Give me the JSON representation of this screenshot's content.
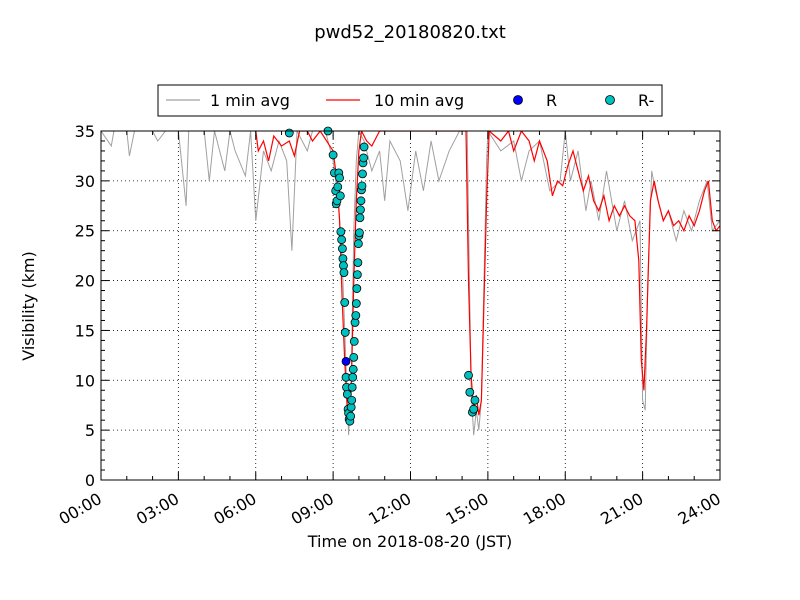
{
  "chart_data": {
    "type": "line",
    "title": "pwd52_20180820.txt",
    "xlabel": "Time on 2018-08-20 (JST)",
    "ylabel": "Visibility (km)",
    "xlim_hours": [
      0,
      24
    ],
    "ylim": [
      0,
      35
    ],
    "xticks": [
      "00:00",
      "03:00",
      "06:00",
      "09:00",
      "12:00",
      "15:00",
      "18:00",
      "21:00",
      "24:00"
    ],
    "yticks": [
      0,
      5,
      10,
      15,
      20,
      25,
      30,
      35
    ],
    "grid": true,
    "legend": {
      "placement": "top-center, outside",
      "entries": [
        {
          "label": "1 min avg",
          "color": "#a0a0a0",
          "kind": "line"
        },
        {
          "label": "10 min avg",
          "color": "#ff0000",
          "kind": "line"
        },
        {
          "label": "R",
          "color": "#0000ff",
          "kind": "marker"
        },
        {
          "label": "R-",
          "color": "#00bfbf",
          "kind": "marker"
        }
      ]
    },
    "series": [
      {
        "name": "1 min avg",
        "color": "#a0a0a0",
        "points": [
          [
            0.0,
            35
          ],
          [
            0.4,
            33.5
          ],
          [
            0.5,
            35
          ],
          [
            1.0,
            35
          ],
          [
            1.1,
            32.5
          ],
          [
            1.3,
            35
          ],
          [
            2.0,
            35
          ],
          [
            2.2,
            34.0
          ],
          [
            2.5,
            35
          ],
          [
            3.0,
            35
          ],
          [
            3.3,
            27.5
          ],
          [
            3.4,
            35
          ],
          [
            4.0,
            35
          ],
          [
            4.2,
            30.0
          ],
          [
            4.4,
            35
          ],
          [
            4.8,
            31.0
          ],
          [
            5.0,
            35
          ],
          [
            5.2,
            33.0
          ],
          [
            5.6,
            30.5
          ],
          [
            5.8,
            35
          ],
          [
            6.0,
            26.0
          ],
          [
            6.3,
            33.0
          ],
          [
            6.6,
            31.0
          ],
          [
            6.9,
            34.0
          ],
          [
            7.2,
            32.0
          ],
          [
            7.4,
            23.0
          ],
          [
            7.6,
            35
          ],
          [
            8.0,
            33.0
          ],
          [
            8.2,
            35
          ],
          [
            8.7,
            35
          ],
          [
            9.0,
            32.0
          ],
          [
            9.2,
            28.0
          ],
          [
            9.35,
            22.0
          ],
          [
            9.45,
            15.0
          ],
          [
            9.55,
            8.0
          ],
          [
            9.6,
            4.5
          ],
          [
            9.7,
            10.0
          ],
          [
            9.8,
            25.0
          ],
          [
            9.9,
            32.0
          ],
          [
            10.0,
            35
          ],
          [
            10.2,
            34.0
          ],
          [
            10.5,
            31.0
          ],
          [
            10.8,
            33.0
          ],
          [
            11.0,
            28.0
          ],
          [
            11.2,
            34.0
          ],
          [
            11.6,
            32.0
          ],
          [
            11.9,
            27.0
          ],
          [
            12.2,
            33.0
          ],
          [
            12.5,
            29.0
          ],
          [
            12.8,
            34.0
          ],
          [
            13.1,
            30.0
          ],
          [
            13.5,
            33.0
          ],
          [
            13.9,
            35
          ],
          [
            14.2,
            35
          ],
          [
            14.35,
            9.0
          ],
          [
            14.45,
            4.5
          ],
          [
            14.55,
            7.0
          ],
          [
            14.65,
            5.0
          ],
          [
            14.75,
            8.0
          ],
          [
            14.85,
            20.0
          ],
          [
            14.95,
            32.0
          ],
          [
            15.0,
            35
          ],
          [
            15.5,
            33.0
          ],
          [
            16.0,
            34.0
          ],
          [
            16.3,
            30.0
          ],
          [
            16.6,
            33.0
          ],
          [
            17.0,
            34.0
          ],
          [
            17.4,
            29.0
          ],
          [
            17.8,
            30.0
          ],
          [
            18.0,
            35
          ],
          [
            18.2,
            30.0
          ],
          [
            18.5,
            33.0
          ],
          [
            18.8,
            27.0
          ],
          [
            19.0,
            30.0
          ],
          [
            19.3,
            26.0
          ],
          [
            19.6,
            31.0
          ],
          [
            20.0,
            25.0
          ],
          [
            20.3,
            28.0
          ],
          [
            20.6,
            24.0
          ],
          [
            20.9,
            26.0
          ],
          [
            21.0,
            8.0
          ],
          [
            21.1,
            7.0
          ],
          [
            21.2,
            20.0
          ],
          [
            21.35,
            31.0
          ],
          [
            21.5,
            29.0
          ],
          [
            21.8,
            26.0
          ],
          [
            22.0,
            27.0
          ],
          [
            22.3,
            24.0
          ],
          [
            22.6,
            27.0
          ],
          [
            22.9,
            25.0
          ],
          [
            23.2,
            28.0
          ],
          [
            23.5,
            30.0
          ],
          [
            23.7,
            25.0
          ],
          [
            24.0,
            26.0
          ]
        ]
      },
      {
        "name": "10 min avg",
        "color": "#ff0000",
        "points": [
          [
            6.0,
            35
          ],
          [
            6.1,
            33.0
          ],
          [
            6.3,
            34.0
          ],
          [
            6.5,
            32.0
          ],
          [
            6.7,
            34.5
          ],
          [
            7.0,
            33.5
          ],
          [
            7.3,
            34.0
          ],
          [
            7.5,
            32.5
          ],
          [
            7.7,
            35
          ],
          [
            8.0,
            35
          ],
          [
            8.2,
            34.0
          ],
          [
            8.5,
            35
          ],
          [
            9.0,
            33.0
          ],
          [
            9.15,
            30.0
          ],
          [
            9.25,
            26.0
          ],
          [
            9.35,
            18.0
          ],
          [
            9.45,
            12.0
          ],
          [
            9.55,
            7.0
          ],
          [
            9.62,
            6.0
          ],
          [
            9.7,
            9.0
          ],
          [
            9.8,
            20.0
          ],
          [
            9.9,
            28.0
          ],
          [
            10.0,
            33.0
          ],
          [
            10.1,
            35
          ],
          [
            10.3,
            34.0
          ],
          [
            10.5,
            33.5
          ],
          [
            10.8,
            35
          ],
          [
            13.8,
            35
          ],
          [
            14.15,
            35
          ],
          [
            14.25,
            20.0
          ],
          [
            14.35,
            10.5
          ],
          [
            14.45,
            7.0
          ],
          [
            14.55,
            8.5
          ],
          [
            14.65,
            6.5
          ],
          [
            14.75,
            8.0
          ],
          [
            14.85,
            18.0
          ],
          [
            14.95,
            28.0
          ],
          [
            15.05,
            35
          ],
          [
            15.5,
            34.0
          ],
          [
            15.8,
            35
          ],
          [
            16.0,
            33.0
          ],
          [
            16.3,
            35
          ],
          [
            16.6,
            34.0
          ],
          [
            16.8,
            32.0
          ],
          [
            17.0,
            34.0
          ],
          [
            17.3,
            32.0
          ],
          [
            17.5,
            28.5
          ],
          [
            17.7,
            30.0
          ],
          [
            17.9,
            29.5
          ],
          [
            18.1,
            31.5
          ],
          [
            18.3,
            33.0
          ],
          [
            18.5,
            31.0
          ],
          [
            18.7,
            29.0
          ],
          [
            18.9,
            30.5
          ],
          [
            19.1,
            28.0
          ],
          [
            19.3,
            27.0
          ],
          [
            19.5,
            28.5
          ],
          [
            19.7,
            26.0
          ],
          [
            19.9,
            27.5
          ],
          [
            20.1,
            26.5
          ],
          [
            20.3,
            27.5
          ],
          [
            20.5,
            26.5
          ],
          [
            20.7,
            26.0
          ],
          [
            20.85,
            22.0
          ],
          [
            20.95,
            12.0
          ],
          [
            21.05,
            9.0
          ],
          [
            21.15,
            15.0
          ],
          [
            21.3,
            28.0
          ],
          [
            21.45,
            30.0
          ],
          [
            21.6,
            28.0
          ],
          [
            21.8,
            26.0
          ],
          [
            22.0,
            27.0
          ],
          [
            22.2,
            25.5
          ],
          [
            22.4,
            26.0
          ],
          [
            22.6,
            25.0
          ],
          [
            22.8,
            26.5
          ],
          [
            23.0,
            25.5
          ],
          [
            23.2,
            27.0
          ],
          [
            23.4,
            29.0
          ],
          [
            23.55,
            30.0
          ],
          [
            23.7,
            26.0
          ],
          [
            23.85,
            25.0
          ],
          [
            24.0,
            25.5
          ]
        ]
      },
      {
        "name": "R",
        "color": "#0000ff",
        "points": [
          [
            9.5,
            11.9
          ]
        ]
      },
      {
        "name": "R-",
        "color": "#00bfbf",
        "points": [
          [
            7.3,
            34.8
          ],
          [
            8.8,
            35
          ],
          [
            9.0,
            32.6
          ],
          [
            9.05,
            30.8
          ],
          [
            9.1,
            29.0
          ],
          [
            9.12,
            27.7
          ],
          [
            9.15,
            28.0
          ],
          [
            9.18,
            29.4
          ],
          [
            9.22,
            30.8
          ],
          [
            9.25,
            30.3
          ],
          [
            9.28,
            28.5
          ],
          [
            9.3,
            24.9
          ],
          [
            9.33,
            24.1
          ],
          [
            9.36,
            23.2
          ],
          [
            9.38,
            22.2
          ],
          [
            9.4,
            21.5
          ],
          [
            9.42,
            20.8
          ],
          [
            9.45,
            17.8
          ],
          [
            9.47,
            14.8
          ],
          [
            9.5,
            10.3
          ],
          [
            9.52,
            9.3
          ],
          [
            9.55,
            8.6
          ],
          [
            9.58,
            7.1
          ],
          [
            9.6,
            6.7
          ],
          [
            9.62,
            6.1
          ],
          [
            9.65,
            5.9
          ],
          [
            9.68,
            6.4
          ],
          [
            9.7,
            7.3
          ],
          [
            9.72,
            8.0
          ],
          [
            9.74,
            9.3
          ],
          [
            9.76,
            10.3
          ],
          [
            9.78,
            11.1
          ],
          [
            9.8,
            12.3
          ],
          [
            9.82,
            13.9
          ],
          [
            9.85,
            15.8
          ],
          [
            9.88,
            16.5
          ],
          [
            9.9,
            17.7
          ],
          [
            9.92,
            19.2
          ],
          [
            9.94,
            20.6
          ],
          [
            9.96,
            21.8
          ],
          [
            9.98,
            23.7
          ],
          [
            10.0,
            24.5
          ],
          [
            10.02,
            24.8
          ],
          [
            10.04,
            26.3
          ],
          [
            10.06,
            27.1
          ],
          [
            10.08,
            28.0
          ],
          [
            10.1,
            29.1
          ],
          [
            10.12,
            29.5
          ],
          [
            10.14,
            30.7
          ],
          [
            10.16,
            31.8
          ],
          [
            10.18,
            32.3
          ],
          [
            10.2,
            33.4
          ],
          [
            14.25,
            10.5
          ],
          [
            14.3,
            8.8
          ],
          [
            14.4,
            6.8
          ],
          [
            14.45,
            7.1
          ],
          [
            14.5,
            8.0
          ]
        ]
      }
    ]
  }
}
